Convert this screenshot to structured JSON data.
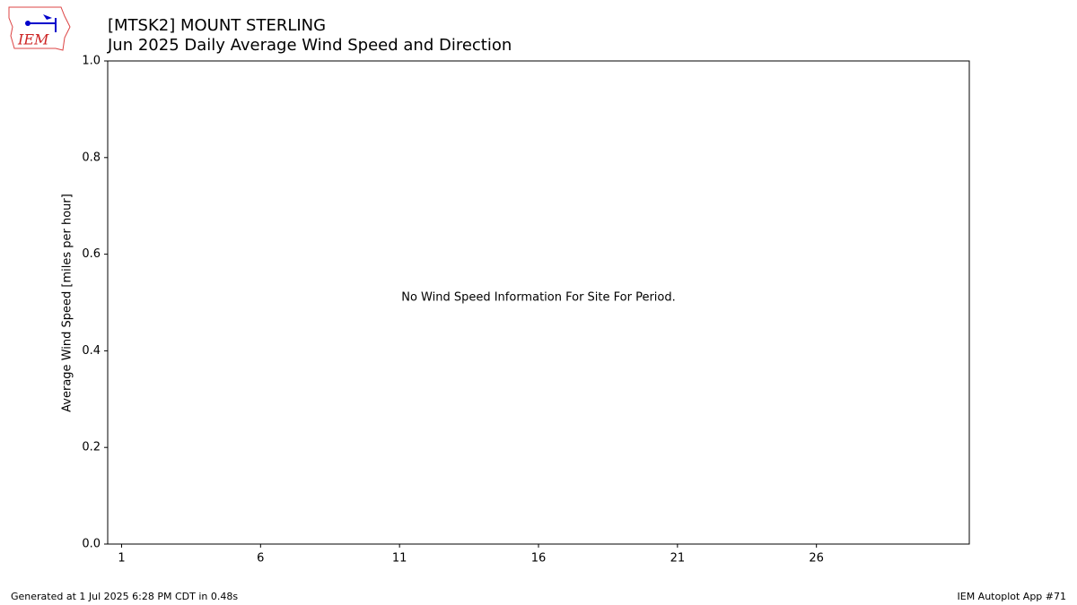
{
  "chart_data": {
    "type": "line",
    "title": "[MTSK2] MOUNT STERLING",
    "subtitle": "Jun 2025 Daily Average Wind Speed and Direction",
    "y_label": "Average Wind Speed [miles per hour]",
    "annotation": "No Wind Speed Information For Site For Period.",
    "xlim": [
      0.5,
      31.5
    ],
    "xticks": [
      1,
      6,
      11,
      16,
      21,
      26
    ],
    "ylim": [
      0,
      1
    ],
    "yticks": [
      {
        "value": 0,
        "label": "0.0"
      },
      {
        "value": 0.2,
        "label": "0.2"
      },
      {
        "value": 0.4,
        "label": "0.4"
      },
      {
        "value": 0.6,
        "label": "0.6"
      },
      {
        "value": 0.8,
        "label": "0.8"
      },
      {
        "value": 1,
        "label": "1.0"
      }
    ]
  },
  "logo": "IEM",
  "footer_left": "Generated at 1 Jul 2025 6:28 PM CDT in 0.48s",
  "footer_right": "IEM Autoplot App #71"
}
